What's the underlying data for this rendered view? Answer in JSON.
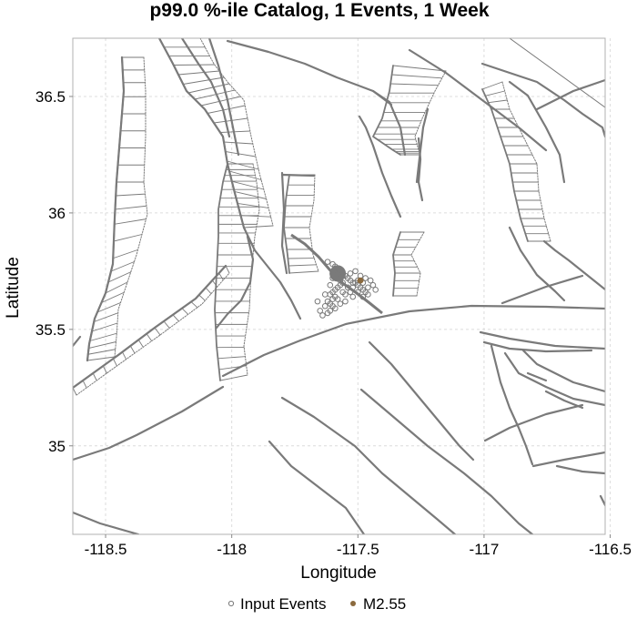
{
  "chart_data": {
    "type": "scatter",
    "title": "p99.0 %-ile Catalog, 1 Events, 1 Week",
    "xlabel": "Longitude",
    "ylabel": "Latitude",
    "xlim": [
      -118.63,
      -116.52
    ],
    "ylim": [
      34.62,
      36.75
    ],
    "x_ticks": [
      -118.5,
      -118,
      -117.5,
      -117,
      -116.5
    ],
    "x_tick_labels": [
      "-118.5",
      "-118",
      "-117.5",
      "-117",
      "-116.5"
    ],
    "y_ticks": [
      35,
      35.5,
      36,
      36.5
    ],
    "y_tick_labels": [
      "35",
      "35.5",
      "36",
      "36.5"
    ],
    "grid": true,
    "legend_placement": "bottom-center",
    "colors": {
      "fault": "#7a7a7a",
      "input_events": "#7a7a7a",
      "mainshock": "#8b6a3e",
      "grid": "#dcdcdc"
    },
    "series": [
      {
        "name": "Input Events",
        "marker": "open-circle",
        "points": [
          [
            -117.62,
            35.79
          ],
          [
            -117.6,
            35.78
          ],
          [
            -117.59,
            35.77
          ],
          [
            -117.58,
            35.76
          ],
          [
            -117.57,
            35.75
          ],
          [
            -117.56,
            35.74
          ],
          [
            -117.55,
            35.73
          ],
          [
            -117.54,
            35.72
          ],
          [
            -117.53,
            35.71
          ],
          [
            -117.52,
            35.7
          ],
          [
            -117.51,
            35.7
          ],
          [
            -117.5,
            35.69
          ],
          [
            -117.49,
            35.68
          ],
          [
            -117.48,
            35.67
          ],
          [
            -117.47,
            35.66
          ],
          [
            -117.46,
            35.65
          ],
          [
            -117.56,
            35.7
          ],
          [
            -117.57,
            35.69
          ],
          [
            -117.58,
            35.68
          ],
          [
            -117.59,
            35.67
          ],
          [
            -117.6,
            35.66
          ],
          [
            -117.61,
            35.65
          ],
          [
            -117.59,
            35.64
          ],
          [
            -117.6,
            35.63
          ],
          [
            -117.62,
            35.62
          ],
          [
            -117.61,
            35.61
          ],
          [
            -117.6,
            35.6
          ],
          [
            -117.59,
            35.59
          ],
          [
            -117.61,
            35.58
          ],
          [
            -117.62,
            35.57
          ],
          [
            -117.64,
            35.56
          ],
          [
            -117.63,
            35.6
          ],
          [
            -117.55,
            35.65
          ],
          [
            -117.53,
            35.66
          ],
          [
            -117.52,
            35.68
          ],
          [
            -117.5,
            35.71
          ],
          [
            -117.49,
            35.73
          ],
          [
            -117.47,
            35.72
          ],
          [
            -117.45,
            35.71
          ],
          [
            -117.44,
            35.69
          ],
          [
            -117.43,
            35.67
          ],
          [
            -117.54,
            35.68
          ],
          [
            -117.56,
            35.66
          ],
          [
            -117.57,
            35.71
          ],
          [
            -117.53,
            35.74
          ],
          [
            -117.51,
            35.75
          ],
          [
            -117.48,
            35.7
          ],
          [
            -117.46,
            35.68
          ],
          [
            -117.58,
            35.63
          ],
          [
            -117.57,
            35.61
          ],
          [
            -117.55,
            35.62
          ],
          [
            -117.52,
            35.64
          ],
          [
            -117.5,
            35.66
          ],
          [
            -117.48,
            35.64
          ],
          [
            -117.65,
            35.58
          ],
          [
            -117.66,
            35.62
          ],
          [
            -117.63,
            35.65
          ],
          [
            -117.61,
            35.69
          ],
          [
            -117.6,
            35.72
          ],
          [
            -117.58,
            35.74
          ]
        ]
      },
      {
        "name": "M2.55",
        "marker": "filled-circle",
        "points": [
          [
            -117.49,
            35.71
          ]
        ]
      }
    ],
    "legend": [
      {
        "label": "Input Events",
        "marker": "open-circle"
      },
      {
        "label": "M2.55",
        "marker": "filled-circle"
      }
    ]
  }
}
